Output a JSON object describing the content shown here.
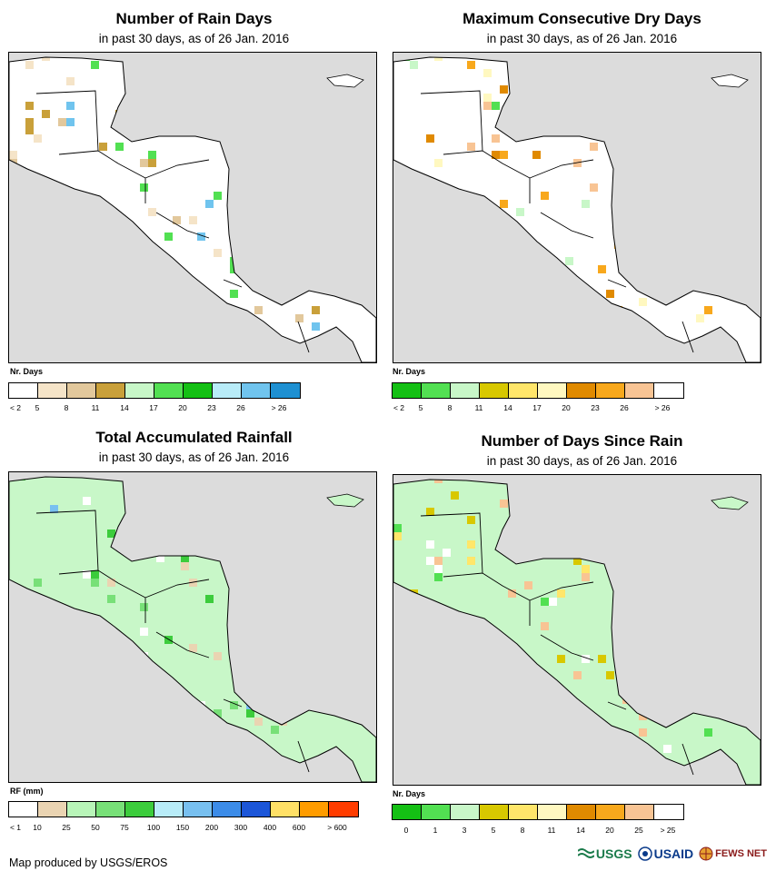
{
  "panels": [
    {
      "title": "Number of Rain Days",
      "subtitle": "in past 30 days, as of 26 Jan. 2016",
      "unit": "Nr. Days",
      "legend_colors": [
        "#ffffff",
        "#f5e4c8",
        "#e2c89c",
        "#c9a03a",
        "#c8f7c8",
        "#52e052",
        "#14c014",
        "#b8ecf8",
        "#70c4ee",
        "#1e90d2"
      ],
      "legend_labels": [
        "< 2",
        "5",
        "8",
        "11",
        "14",
        "17",
        "20",
        "23",
        "26",
        "> 26"
      ],
      "label_mode": "boundary",
      "land_base": "#ffffff",
      "patches": [
        "#f5e4c8",
        "#e2c89c",
        "#c9a03a",
        "#52e052",
        "#70c4ee"
      ]
    },
    {
      "title": "Maximum Consecutive Dry Days",
      "subtitle": "in past 30 days, as of 26 Jan. 2016",
      "unit": "Nr. Days",
      "legend_colors": [
        "#14c014",
        "#52e052",
        "#c8f7c8",
        "#d8c800",
        "#ffe66a",
        "#fff8c0",
        "#e08a00",
        "#f8a81c",
        "#f8c494",
        "#ffffff"
      ],
      "legend_labels": [
        "< 2",
        "5",
        "8",
        "11",
        "14",
        "17",
        "20",
        "23",
        "26",
        "> 26"
      ],
      "label_mode": "boundary",
      "land_base": "#ffffff",
      "patches": [
        "#f8a81c",
        "#e08a00",
        "#f8c494",
        "#fff8c0",
        "#52e052",
        "#c8f7c8"
      ]
    },
    {
      "title": "Total Accumulated Rainfall",
      "subtitle": "in past 30 days, as of 26 Jan. 2016",
      "unit": "RF (mm)",
      "legend_colors": [
        "#ffffff",
        "#ead4b2",
        "#b8f5b8",
        "#78e078",
        "#3ccc3c",
        "#b8ecf8",
        "#78c0f0",
        "#3c8ce8",
        "#1c56d8",
        "#ffe066",
        "#ff9c00",
        "#ff3c00"
      ],
      "legend_labels": [
        "< 1",
        "10",
        "25",
        "50",
        "75",
        "100",
        "150",
        "200",
        "300",
        "400",
        "600",
        "> 600"
      ],
      "label_mode": "boundary",
      "land_base": "#c8f7c8",
      "patches": [
        "#ead4b2",
        "#ffffff",
        "#78e078",
        "#3ccc3c",
        "#78c0f0"
      ]
    },
    {
      "title": "Number of Days Since Rain",
      "subtitle": "in past 30 days, as of 26 Jan. 2016",
      "unit": "Nr. Days",
      "legend_colors": [
        "#14c014",
        "#52e052",
        "#c8f7c8",
        "#d8c800",
        "#ffe66a",
        "#fff8c0",
        "#e08a00",
        "#f8a81c",
        "#f8c494",
        "#ffffff"
      ],
      "legend_labels": [
        "0",
        "1",
        "3",
        "5",
        "8",
        "11",
        "14",
        "20",
        "25",
        "> 25"
      ],
      "label_mode": "center",
      "land_base": "#c8f7c8",
      "patches": [
        "#d8c800",
        "#52e052",
        "#ffffff",
        "#f8c494",
        "#ffe66a"
      ]
    }
  ],
  "footer": {
    "credit": "Map produced by USGS/EROS"
  },
  "logos": {
    "usgs": "USGS",
    "usaid": "USAID",
    "fews": "FEWS NET"
  }
}
